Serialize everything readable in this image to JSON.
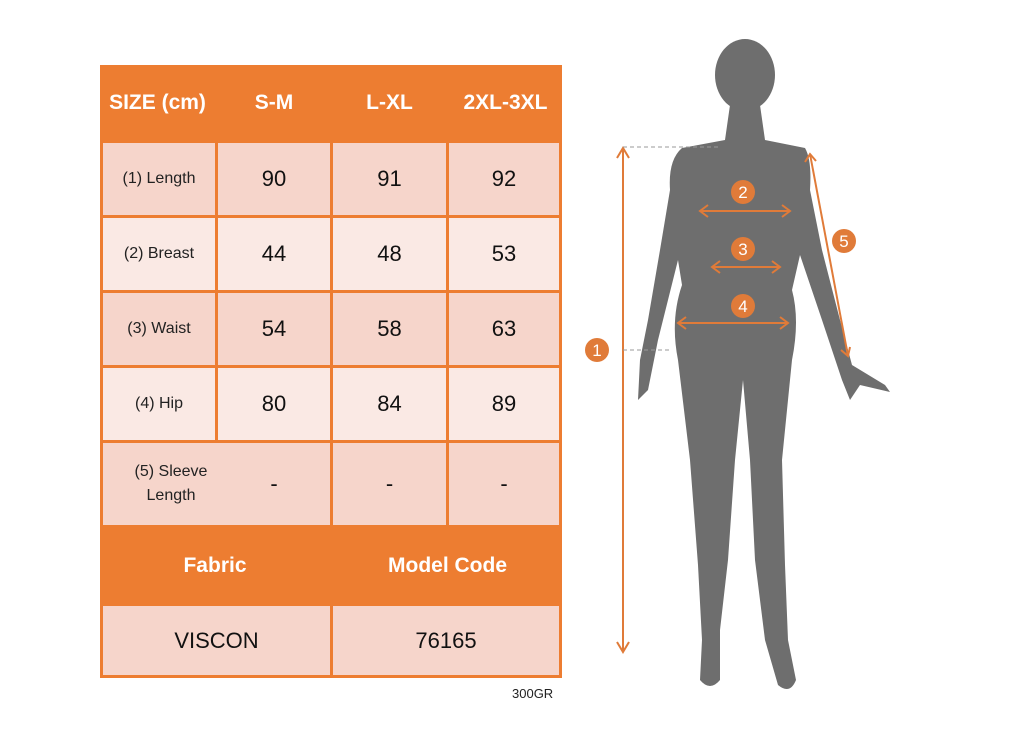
{
  "colors": {
    "accent": "#ED7D31",
    "cell_dark": "#F6D5CB",
    "cell_light": "#FAE9E4",
    "silhouette": "#6E6E6E"
  },
  "table": {
    "header": [
      "SIZE (cm)",
      "S-M",
      "L-XL",
      "2XL-3XL"
    ],
    "rows": [
      {
        "label": "(1) Length",
        "values": [
          "90",
          "91",
          "92"
        ]
      },
      {
        "label": "(2) Breast",
        "values": [
          "44",
          "48",
          "53"
        ]
      },
      {
        "label": "(3) Waist",
        "values": [
          "54",
          "58",
          "63"
        ]
      },
      {
        "label": "(4) Hip",
        "values": [
          "80",
          "84",
          "89"
        ]
      },
      {
        "label": "(5) Sleeve Length",
        "values": [
          "-",
          "-",
          "-"
        ]
      }
    ],
    "footer_headers": [
      "Fabric",
      "Model Code"
    ],
    "footer_values": [
      "VISCON",
      "76165"
    ]
  },
  "note": "300GR",
  "figure": {
    "markers": [
      "1",
      "2",
      "3",
      "4",
      "5"
    ]
  }
}
